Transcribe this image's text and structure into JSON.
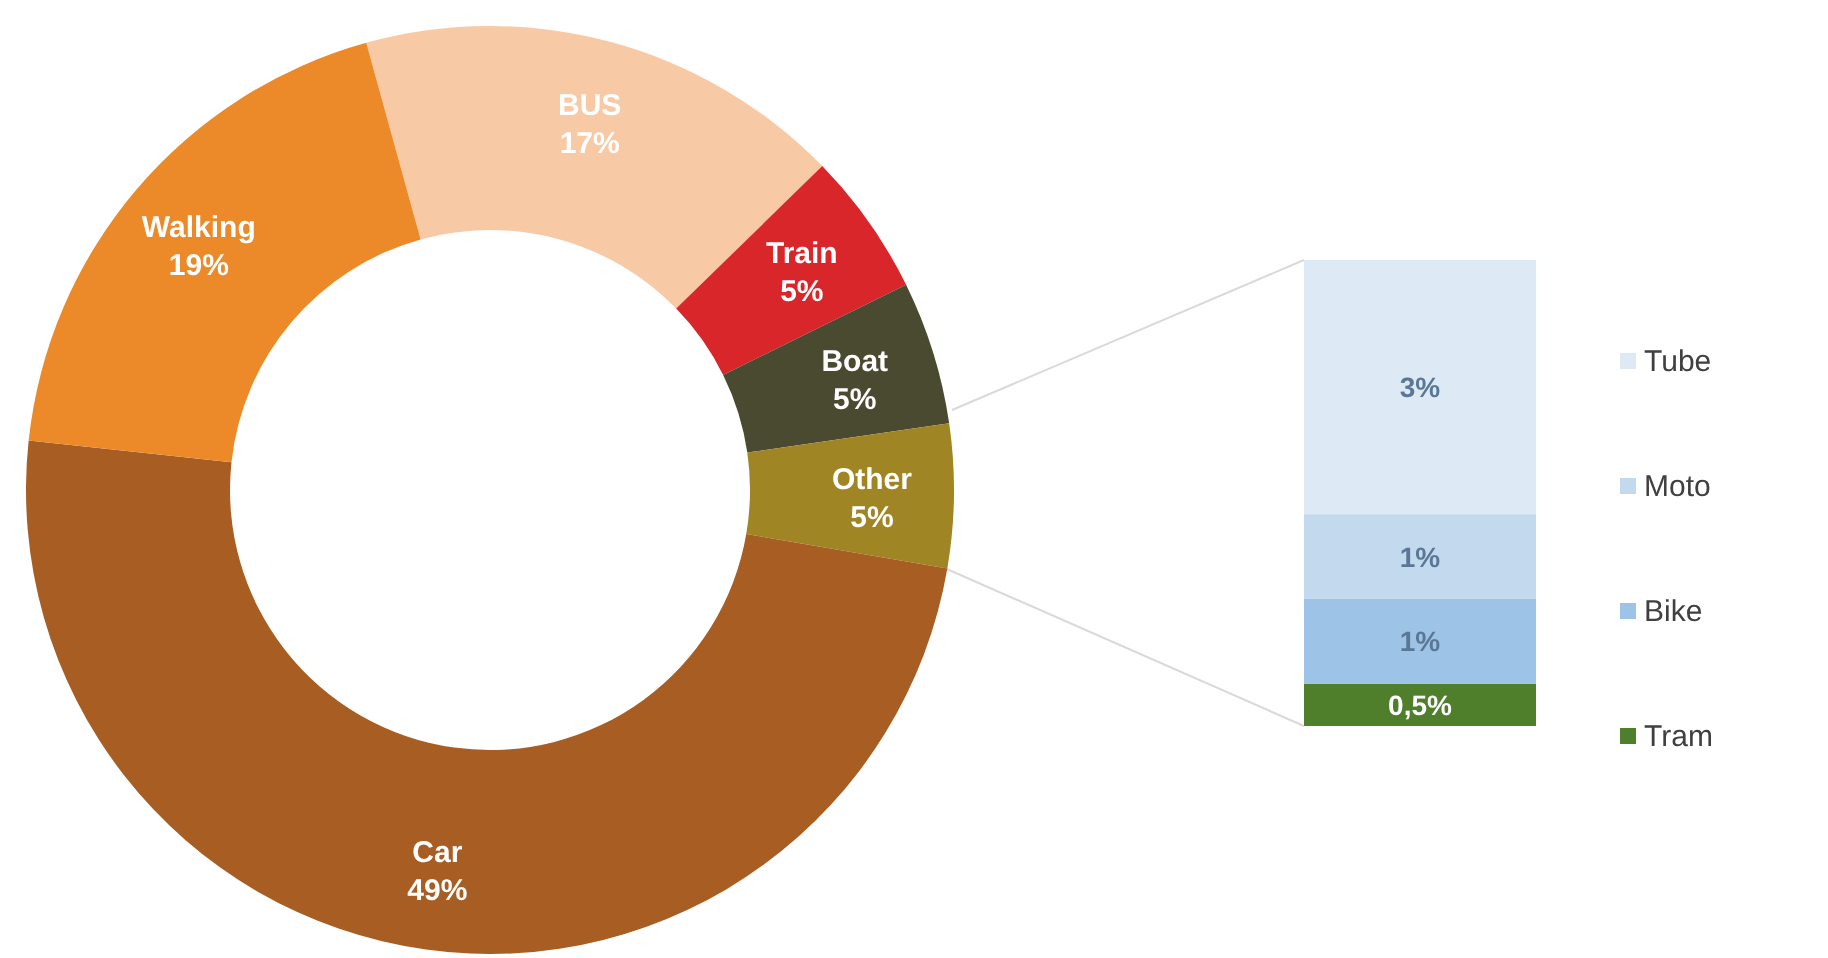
{
  "chart_data": [
    {
      "type": "donut",
      "categories": [
        "BUS",
        "Train",
        "Boat",
        "Other",
        "Car",
        "Walking"
      ],
      "values": [
        17,
        5,
        5,
        5,
        49,
        19
      ],
      "colors": [
        "#f8c9a5",
        "#d9262a",
        "#4a4a30",
        "#a08524",
        "#a85d22",
        "#ec8a2a"
      ],
      "value_labels": [
        "17%",
        "5%",
        "5%",
        "5%",
        "49%",
        "19%"
      ]
    },
    {
      "type": "bar",
      "stacked": true,
      "categories": [
        null
      ],
      "legend": "right",
      "series": [
        {
          "name": "Tram",
          "color": "#4f7f2a",
          "values": [
            0.5
          ],
          "value_labels": [
            "0,5%"
          ]
        },
        {
          "name": "Bike",
          "color": "#9dc3e6",
          "values": [
            1
          ],
          "value_labels": [
            "1%"
          ]
        },
        {
          "name": "Moto",
          "color": "#c3d9ee",
          "values": [
            1
          ],
          "value_labels": [
            "1%"
          ]
        },
        {
          "name": "Tube",
          "color": "#dde9f5",
          "values": [
            3
          ],
          "value_labels": [
            "3%"
          ]
        }
      ]
    }
  ]
}
